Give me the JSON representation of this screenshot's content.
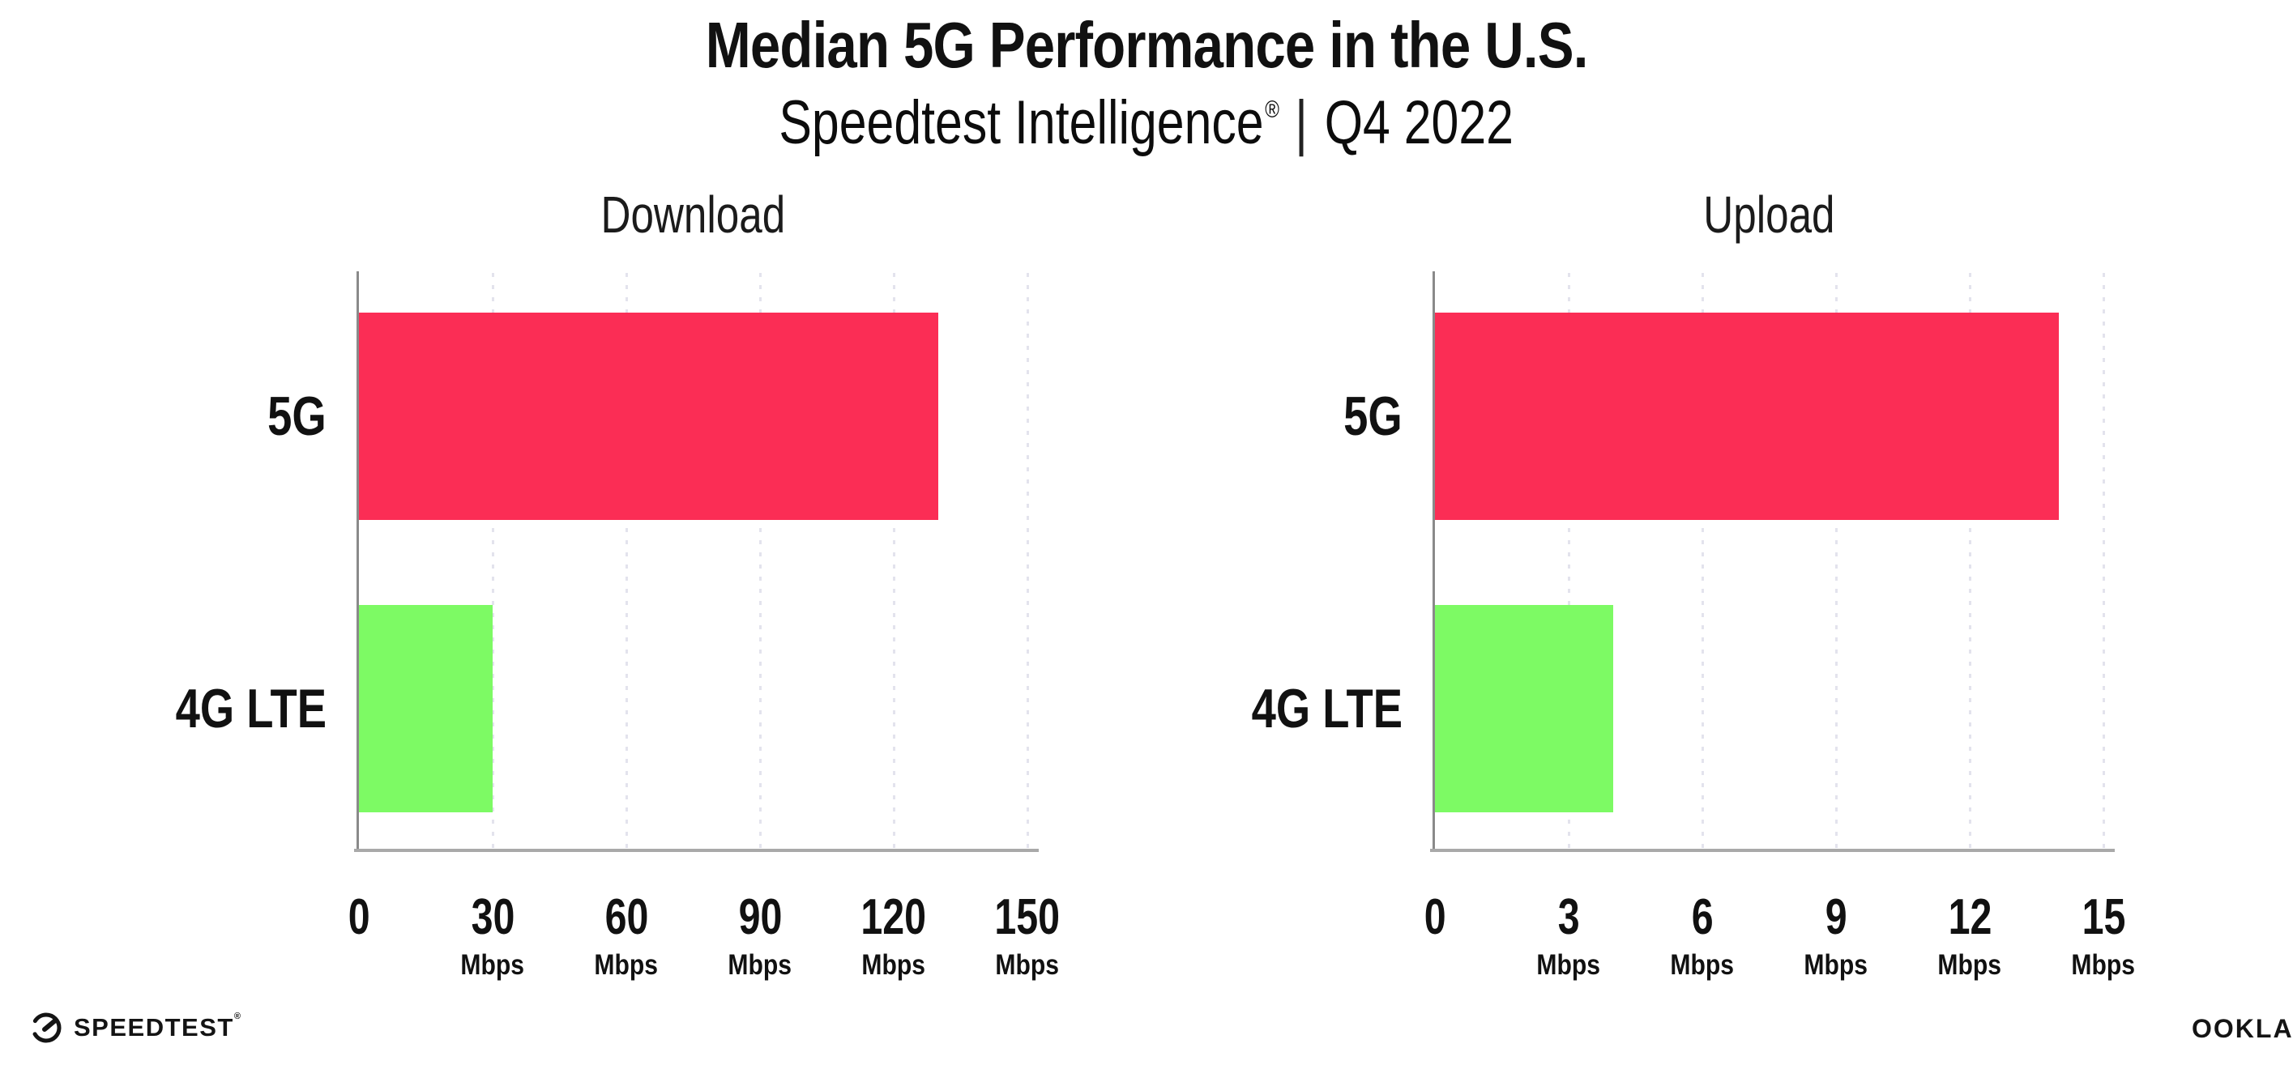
{
  "header": {
    "title": "Median 5G Performance in the U.S.",
    "subtitle": {
      "brand": "Speedtest Intelligence",
      "reg": "®",
      "divider": "|",
      "period": "Q4 2022"
    }
  },
  "chart_data": [
    {
      "type": "bar",
      "orientation": "horizontal",
      "title": "Download",
      "categories": [
        "5G",
        "4G LTE"
      ],
      "values": [
        130,
        30
      ],
      "unit": "Mbps",
      "xlim": [
        0,
        150
      ],
      "xticks": [
        0,
        30,
        60,
        90,
        120,
        150
      ],
      "tick_unit": "Mbps",
      "bar_colors": [
        "#FB2D55",
        "#7DFA64"
      ],
      "grid": "dotted vertical gridlines at each tick",
      "legend": "none"
    },
    {
      "type": "bar",
      "orientation": "horizontal",
      "title": "Upload",
      "categories": [
        "5G",
        "4G LTE"
      ],
      "values": [
        14,
        4
      ],
      "unit": "Mbps",
      "xlim": [
        0,
        15
      ],
      "xticks": [
        0,
        3,
        6,
        9,
        12,
        15
      ],
      "tick_unit": "Mbps",
      "bar_colors": [
        "#FB2D55",
        "#7DFA64"
      ],
      "grid": "dotted vertical gridlines at each tick",
      "legend": "none"
    }
  ],
  "colors": {
    "bar_5g": "#FB2D55",
    "bar_4g_lte": "#7DFA64",
    "axis_y": "#8A8A8A",
    "axis_x": "#A9A9A9",
    "grid_dot": "#E3E3ED",
    "text": "#111111"
  },
  "footer": {
    "speedtest": {
      "label": "SPEEDTEST",
      "reg": "®",
      "icon": "gauge-icon"
    },
    "ookla": {
      "label": "OOKLA",
      "reg": "®"
    }
  }
}
